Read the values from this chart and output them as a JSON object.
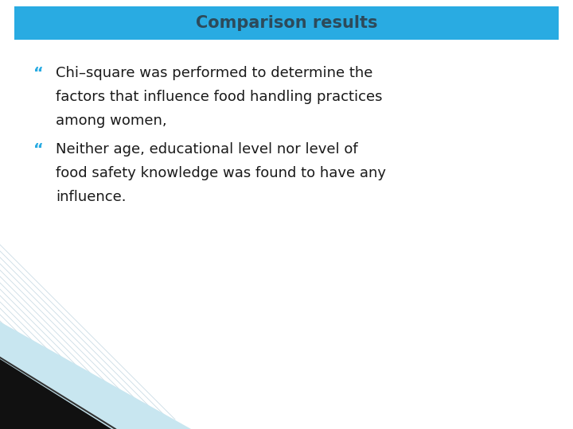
{
  "title": "Comparison results",
  "title_bg_color": "#29ABE2",
  "title_text_color": "#2d4a5a",
  "bg_color": "#FFFFFF",
  "bullet_color": "#29ABE2",
  "text_color": "#1a1a1a",
  "bullet1_line1": "Chi–square was performed to determine the",
  "bullet1_line2": "factors that influence food handling practices",
  "bullet1_line3": "among women,",
  "bullet2_line1": "Neither age, educational level nor level of",
  "bullet2_line2": "food safety knowledge was found to have any",
  "bullet2_line3": "influence.",
  "title_fontsize": 15,
  "body_fontsize": 13,
  "bullet_char": "“",
  "stripe_light_blue": "#C8E6F0",
  "stripe_black": "#111111",
  "stripe_thin_color": "#99BBCC"
}
